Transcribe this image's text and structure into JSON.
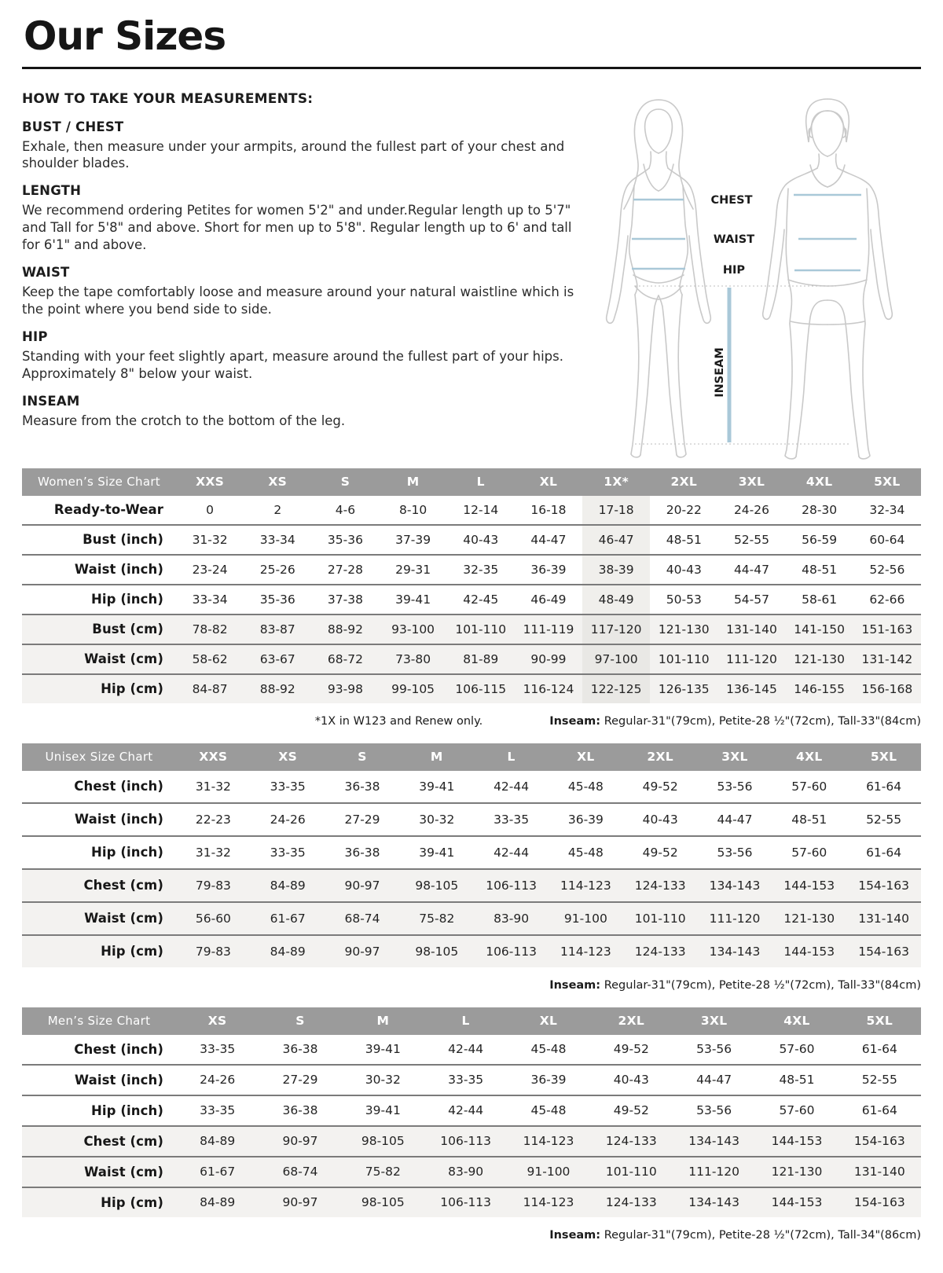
{
  "page": {
    "title": "Our Sizes"
  },
  "measure_guide": {
    "heading": "HOW TO TAKE YOUR MEASUREMENTS:",
    "sections": [
      {
        "title": "BUST / CHEST",
        "body": "Exhale, then measure under your armpits, around the fullest part of your chest and shoulder blades."
      },
      {
        "title": "LENGTH",
        "body": "We recommend ordering Petites for women 5'2\" and under.Regular length up to 5'7\" and Tall for 5'8\" and above. Short for men up to 5'8\". Regular length up to 6' and tall for 6'1\" and above."
      },
      {
        "title": "WAIST",
        "body": "Keep the tape comfortably loose and measure around your natural waistline which is the point where you bend side to side."
      },
      {
        "title": "HIP",
        "body": "Standing with your feet slightly apart, measure around the fullest part of your hips. Approximately 8\" below your waist."
      },
      {
        "title": "INSEAM",
        "body": "Measure from the crotch to the bottom of the leg."
      }
    ]
  },
  "diagram": {
    "chest_label": "CHEST",
    "waist_label": "WAIST",
    "hip_label": "HIP",
    "inseam_label": "INSEAM"
  },
  "tables": [
    {
      "title": "Women’s Size Chart",
      "columns": [
        "XXS",
        "XS",
        "S",
        "M",
        "L",
        "XL",
        "1X*",
        "2XL",
        "3XL",
        "4XL",
        "5XL"
      ],
      "highlight_col": 6,
      "rows": [
        {
          "label": "Ready-to-Wear",
          "shaded": false,
          "values": [
            "0",
            "2",
            "4-6",
            "8-10",
            "12-14",
            "16-18",
            "17-18",
            "20-22",
            "24-26",
            "28-30",
            "32-34"
          ]
        },
        {
          "label": "Bust (inch)",
          "shaded": false,
          "values": [
            "31-32",
            "33-34",
            "35-36",
            "37-39",
            "40-43",
            "44-47",
            "46-47",
            "48-51",
            "52-55",
            "56-59",
            "60-64"
          ]
        },
        {
          "label": "Waist (inch)",
          "shaded": false,
          "values": [
            "23-24",
            "25-26",
            "27-28",
            "29-31",
            "32-35",
            "36-39",
            "38-39",
            "40-43",
            "44-47",
            "48-51",
            "52-56"
          ]
        },
        {
          "label": "Hip (inch)",
          "shaded": false,
          "values": [
            "33-34",
            "35-36",
            "37-38",
            "39-41",
            "42-45",
            "46-49",
            "48-49",
            "50-53",
            "54-57",
            "58-61",
            "62-66"
          ]
        },
        {
          "label": "Bust (cm)",
          "shaded": true,
          "values": [
            "78-82",
            "83-87",
            "88-92",
            "93-100",
            "101-110",
            "111-119",
            "117-120",
            "121-130",
            "131-140",
            "141-150",
            "151-163"
          ]
        },
        {
          "label": "Waist (cm)",
          "shaded": true,
          "values": [
            "58-62",
            "63-67",
            "68-72",
            "73-80",
            "81-89",
            "90-99",
            "97-100",
            "101-110",
            "111-120",
            "121-130",
            "131-142"
          ]
        },
        {
          "label": "Hip (cm)",
          "shaded": true,
          "values": [
            "84-87",
            "88-92",
            "93-98",
            "99-105",
            "106-115",
            "116-124",
            "122-125",
            "126-135",
            "136-145",
            "146-155",
            "156-168"
          ]
        }
      ],
      "footnote_note": "*1X in W123 and Renew only.",
      "footnote_inseam_label": "Inseam:",
      "footnote_inseam_text": " Regular-31\"(79cm), Petite-28 ½\"(72cm), Tall-33\"(84cm)"
    },
    {
      "title": "Unisex Size Chart",
      "columns": [
        "XXS",
        "XS",
        "S",
        "M",
        "L",
        "XL",
        "2XL",
        "3XL",
        "4XL",
        "5XL"
      ],
      "highlight_col": -1,
      "rows": [
        {
          "label": "Chest (inch)",
          "shaded": false,
          "values": [
            "31-32",
            "33-35",
            "36-38",
            "39-41",
            "42-44",
            "45-48",
            "49-52",
            "53-56",
            "57-60",
            "61-64"
          ]
        },
        {
          "label": "Waist (inch)",
          "shaded": false,
          "values": [
            "22-23",
            "24-26",
            "27-29",
            "30-32",
            "33-35",
            "36-39",
            "40-43",
            "44-47",
            "48-51",
            "52-55"
          ]
        },
        {
          "label": "Hip (inch)",
          "shaded": false,
          "values": [
            "31-32",
            "33-35",
            "36-38",
            "39-41",
            "42-44",
            "45-48",
            "49-52",
            "53-56",
            "57-60",
            "61-64"
          ]
        },
        {
          "label": "Chest (cm)",
          "shaded": true,
          "values": [
            "79-83",
            "84-89",
            "90-97",
            "98-105",
            "106-113",
            "114-123",
            "124-133",
            "134-143",
            "144-153",
            "154-163"
          ]
        },
        {
          "label": "Waist (cm)",
          "shaded": true,
          "values": [
            "56-60",
            "61-67",
            "68-74",
            "75-82",
            "83-90",
            "91-100",
            "101-110",
            "111-120",
            "121-130",
            "131-140"
          ]
        },
        {
          "label": "Hip (cm)",
          "shaded": true,
          "values": [
            "79-83",
            "84-89",
            "90-97",
            "98-105",
            "106-113",
            "114-123",
            "124-133",
            "134-143",
            "144-153",
            "154-163"
          ]
        }
      ],
      "footnote_inseam_label": "Inseam:",
      "footnote_inseam_text": " Regular-31\"(79cm), Petite-28 ½\"(72cm), Tall-33\"(84cm)"
    },
    {
      "title": "Men’s Size Chart",
      "columns": [
        "XS",
        "S",
        "M",
        "L",
        "XL",
        "2XL",
        "3XL",
        "4XL",
        "5XL"
      ],
      "highlight_col": -1,
      "rows": [
        {
          "label": "Chest (inch)",
          "shaded": false,
          "values": [
            "33-35",
            "36-38",
            "39-41",
            "42-44",
            "45-48",
            "49-52",
            "53-56",
            "57-60",
            "61-64"
          ]
        },
        {
          "label": "Waist (inch)",
          "shaded": false,
          "values": [
            "24-26",
            "27-29",
            "30-32",
            "33-35",
            "36-39",
            "40-43",
            "44-47",
            "48-51",
            "52-55"
          ]
        },
        {
          "label": "Hip (inch)",
          "shaded": false,
          "values": [
            "33-35",
            "36-38",
            "39-41",
            "42-44",
            "45-48",
            "49-52",
            "53-56",
            "57-60",
            "61-64"
          ]
        },
        {
          "label": "Chest (cm)",
          "shaded": true,
          "values": [
            "84-89",
            "90-97",
            "98-105",
            "106-113",
            "114-123",
            "124-133",
            "134-143",
            "144-153",
            "154-163"
          ]
        },
        {
          "label": "Waist (cm)",
          "shaded": true,
          "values": [
            "61-67",
            "68-74",
            "75-82",
            "83-90",
            "91-100",
            "101-110",
            "111-120",
            "121-130",
            "131-140"
          ]
        },
        {
          "label": "Hip (cm)",
          "shaded": true,
          "values": [
            "84-89",
            "90-97",
            "98-105",
            "106-113",
            "114-123",
            "124-133",
            "134-143",
            "144-153",
            "154-163"
          ]
        }
      ],
      "footnote_inseam_label": "Inseam:",
      "footnote_inseam_text": " Regular-31\"(79cm), Petite-28 ½\"(72cm), Tall-34\"(86cm)"
    }
  ],
  "colors": {
    "header_bg": "#9b9b9b",
    "shaded_row": "#f3f2f0",
    "highlight_col": "#f0efec",
    "highlight_col_shaded": "#e9e8e5",
    "measure_line": "#a9c8d8",
    "figure_outline": "#c9c9c9",
    "dotted_line": "#bcbcbc",
    "rule": "#141414"
  }
}
